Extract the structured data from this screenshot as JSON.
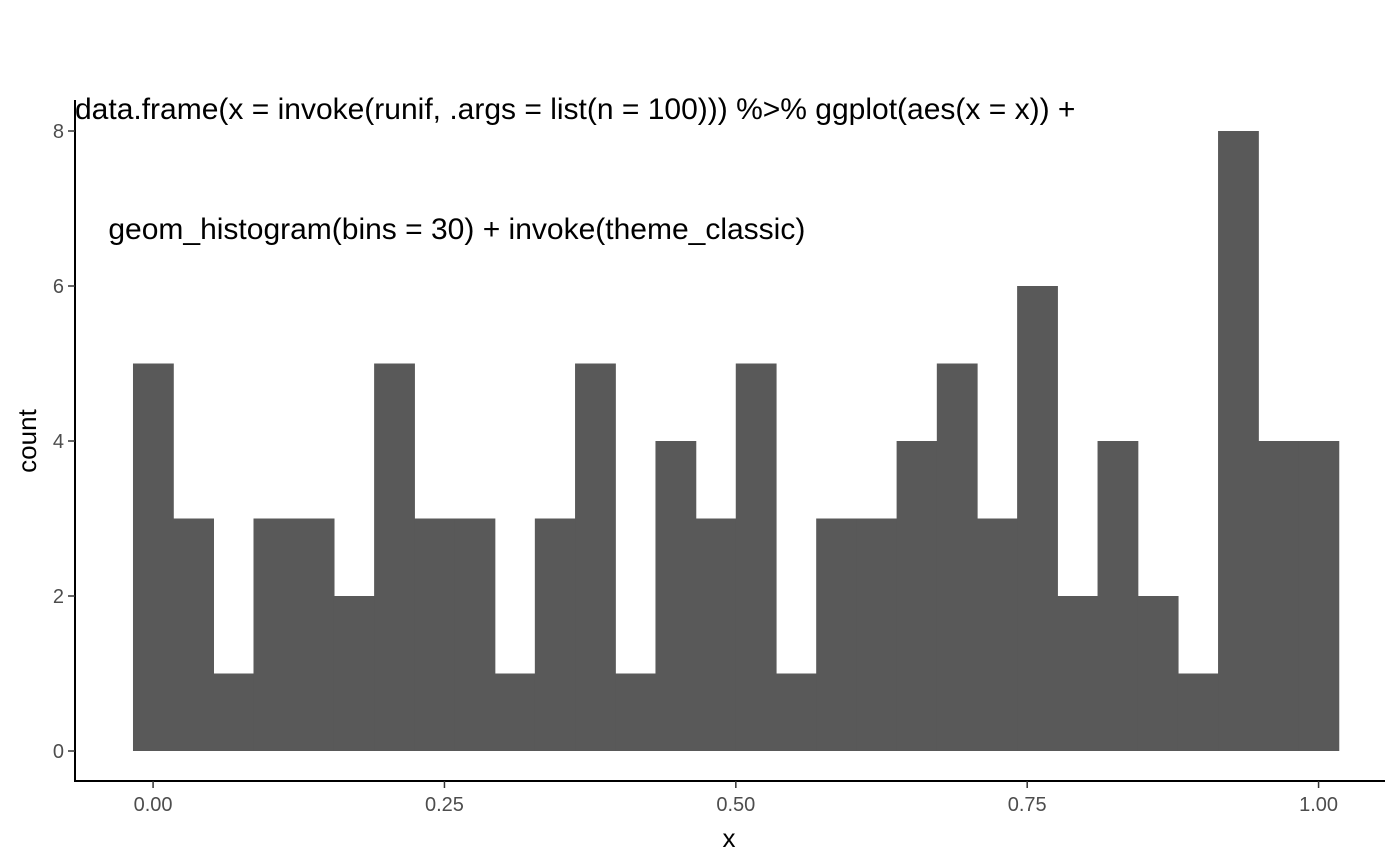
{
  "chart_data": {
    "type": "bar",
    "title_lines": [
      "data.frame(x = invoke(runif, .args = list(n = 100))) %>% ggplot(aes(x = x)) +",
      "    geom_histogram(bins = 30) + invoke(theme_classic)"
    ],
    "xlabel": "x",
    "ylabel": "count",
    "bin_centers": [
      0.0,
      0.0345,
      0.069,
      0.1034,
      0.1379,
      0.1724,
      0.2069,
      0.2414,
      0.2759,
      0.3103,
      0.3448,
      0.3793,
      0.4138,
      0.4483,
      0.4828,
      0.5172,
      0.5517,
      0.5862,
      0.6207,
      0.6552,
      0.6897,
      0.7241,
      0.7586,
      0.7931,
      0.8276,
      0.8621,
      0.8966,
      0.931,
      0.9655,
      1.0
    ],
    "bin_width": 0.0345,
    "values": [
      5,
      3,
      1,
      3,
      3,
      2,
      5,
      3,
      3,
      1,
      3,
      5,
      1,
      4,
      3,
      5,
      1,
      3,
      3,
      4,
      5,
      3,
      6,
      2,
      4,
      2,
      1,
      8,
      4,
      4
    ],
    "bar_color": "#595959",
    "x_ticks": [
      0.0,
      0.25,
      0.5,
      0.75,
      1.0
    ],
    "x_tick_labels": [
      "0.00",
      "0.25",
      "0.50",
      "0.75",
      "1.00"
    ],
    "y_ticks": [
      0,
      2,
      4,
      6,
      8
    ],
    "y_tick_labels": [
      "0",
      "2",
      "4",
      "6",
      "8"
    ],
    "xlim": [
      -0.067,
      1.057
    ],
    "ylim": [
      0,
      8.4
    ],
    "grid": false,
    "legend": "none"
  }
}
